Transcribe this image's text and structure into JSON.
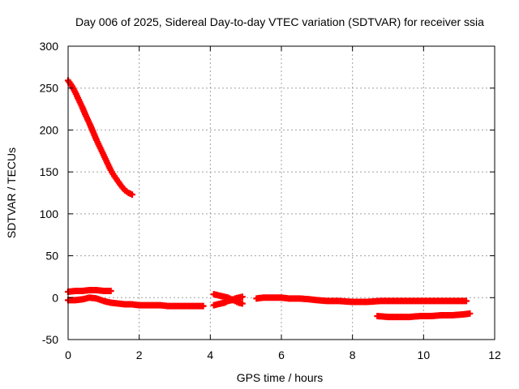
{
  "chart_data": {
    "type": "scatter",
    "title": "Day 006 of 2025, Sidereal Day-to-day VTEC variation (SDTVAR) for receiver ssia",
    "xlabel": "GPS time / hours",
    "ylabel": "SDTVAR / TECUs",
    "xlim": [
      0,
      12
    ],
    "ylim": [
      -50,
      300
    ],
    "xticks": [
      0,
      2,
      4,
      6,
      8,
      10,
      12
    ],
    "yticks": [
      -50,
      0,
      50,
      100,
      150,
      200,
      250,
      300
    ],
    "grid": true,
    "marker": "+",
    "color": "#ff0000",
    "series": [
      {
        "x": [
          0.0,
          0.1,
          0.2,
          0.3,
          0.4,
          0.5,
          0.6,
          0.7,
          0.8,
          0.9,
          1.0,
          1.1,
          1.2,
          1.3,
          1.4,
          1.5,
          1.6,
          1.7,
          1.8
        ],
        "y": [
          259,
          253,
          245,
          236,
          227,
          217,
          208,
          198,
          188,
          179,
          170,
          161,
          152,
          145,
          139,
          133,
          128,
          125,
          123
        ]
      },
      {
        "x": [
          0.0,
          0.2,
          0.4,
          0.6,
          0.8,
          1.0,
          1.2
        ],
        "y": [
          7,
          8,
          8,
          9,
          9,
          8,
          8
        ]
      },
      {
        "x": [
          0.0,
          0.2,
          0.4,
          0.6,
          0.8,
          1.0,
          1.2,
          1.4,
          1.6,
          1.8,
          2.0,
          2.2,
          2.4,
          2.6,
          2.8,
          3.0,
          3.2,
          3.4,
          3.6,
          3.8
        ],
        "y": [
          -3,
          -3,
          -2,
          0,
          -1,
          -4,
          -6,
          -7,
          -8,
          -8,
          -9,
          -9,
          -9,
          -9,
          -10,
          -10,
          -10,
          -10,
          -10,
          -10
        ]
      },
      {
        "x": [
          4.1,
          4.2,
          4.3,
          4.4,
          4.5,
          4.6,
          4.7,
          4.8,
          4.9
        ],
        "y": [
          4,
          3,
          2,
          1,
          0,
          -2,
          -4,
          -6,
          -7
        ]
      },
      {
        "x": [
          4.1,
          4.2,
          4.3,
          4.4,
          4.5,
          4.6,
          4.7,
          4.8,
          4.9
        ],
        "y": [
          -9,
          -8,
          -7,
          -6,
          -4,
          -3,
          -1,
          0,
          1
        ]
      },
      {
        "x": [
          5.3,
          5.5,
          5.8,
          6.0,
          6.2,
          6.5,
          6.8,
          7.0,
          7.3,
          7.6,
          8.0,
          8.4,
          8.8,
          9.2,
          9.6,
          10.0,
          10.4,
          10.8,
          11.2
        ],
        "y": [
          -1,
          0,
          0,
          0,
          -1,
          -1,
          -2,
          -3,
          -4,
          -4,
          -5,
          -5,
          -4,
          -4,
          -4,
          -4,
          -4,
          -4,
          -4
        ]
      },
      {
        "x": [
          8.7,
          9.0,
          9.3,
          9.6,
          9.9,
          10.2,
          10.5,
          10.8,
          11.1,
          11.3
        ],
        "y": [
          -22,
          -23,
          -23,
          -23,
          -22,
          -22,
          -21,
          -21,
          -20,
          -19
        ]
      }
    ]
  }
}
